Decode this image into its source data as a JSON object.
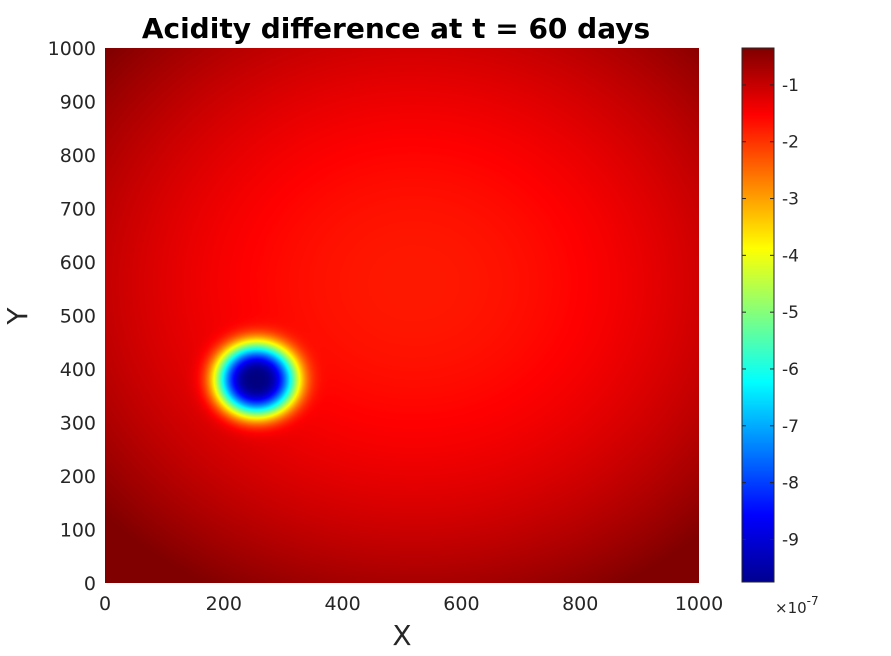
{
  "chart_data": {
    "type": "heatmap",
    "title": "Acidity difference at t = 60 days",
    "xlabel": "X",
    "ylabel": "Y",
    "xlim": [
      0,
      1000
    ],
    "ylim": [
      0,
      1000
    ],
    "x_ticks": [
      0,
      200,
      400,
      600,
      800,
      1000
    ],
    "y_ticks": [
      0,
      100,
      200,
      300,
      400,
      500,
      600,
      700,
      800,
      900,
      1000
    ],
    "grid": false,
    "colormap": "jet",
    "colorbar": {
      "placement": "right",
      "range": [
        -9.75,
        -0.35
      ],
      "ticks": [
        -1,
        -2,
        -3,
        -4,
        -5,
        -6,
        -7,
        -8,
        -9
      ],
      "tick_labels": [
        "-1",
        "-2",
        "-3",
        "-4",
        "-5",
        "-6",
        "-7",
        "-8",
        "-9"
      ],
      "multiplier_base": "×10",
      "multiplier_exponent": "-7"
    },
    "field": {
      "description_values_in_units_1e-7": true,
      "minimum": {
        "x": 255,
        "y": 380,
        "value": -9.75
      },
      "background_range": [
        -1.7,
        -0.35
      ],
      "broad_maximum_region": {
        "x": 520,
        "y": 560,
        "value": -1.7
      }
    }
  }
}
